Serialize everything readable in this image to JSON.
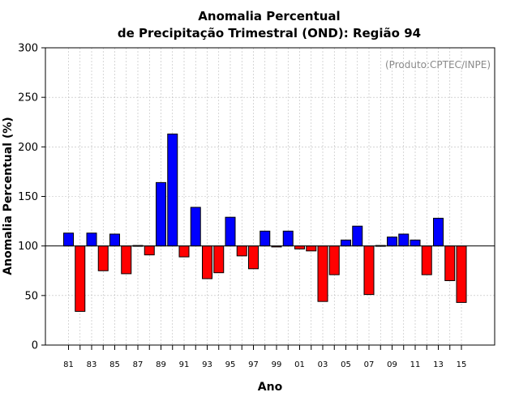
{
  "chart_data": {
    "type": "bar",
    "title_line1": "Anomalia Percentual",
    "title_line2": "de Precipitação Trimestral (OND): Região 94",
    "xlabel": "Ano",
    "ylabel": "Anomalia Percentual (%)",
    "credit": "(Produto:CPTEC/INPE)",
    "baseline": 100,
    "ylim": [
      0,
      300
    ],
    "yticks": [
      0,
      50,
      100,
      150,
      200,
      250,
      300
    ],
    "grid": true,
    "colors": {
      "above": "#0000ff",
      "below": "#ff0000",
      "grid": "#bbbbbb"
    },
    "categories": [
      "81",
      "82",
      "83",
      "84",
      "85",
      "86",
      "87",
      "88",
      "89",
      "90",
      "91",
      "92",
      "93",
      "94",
      "95",
      "96",
      "97",
      "98",
      "99",
      "00",
      "01",
      "02",
      "03",
      "04",
      "05",
      "06",
      "07",
      "08",
      "09",
      "10",
      "11",
      "12",
      "13",
      "14",
      "15"
    ],
    "tick_labels": [
      "81",
      "83",
      "85",
      "87",
      "89",
      "91",
      "93",
      "95",
      "97",
      "99",
      "01",
      "03",
      "05",
      "07",
      "09",
      "11",
      "13",
      "15"
    ],
    "values": [
      113,
      34,
      113,
      75,
      112,
      72,
      100.5,
      91,
      164,
      213,
      89,
      139,
      67,
      73,
      129,
      90,
      77,
      115,
      99,
      115,
      97,
      95,
      44,
      71,
      106,
      120,
      51,
      100.5,
      109,
      112,
      106,
      71,
      128,
      65,
      43
    ]
  }
}
